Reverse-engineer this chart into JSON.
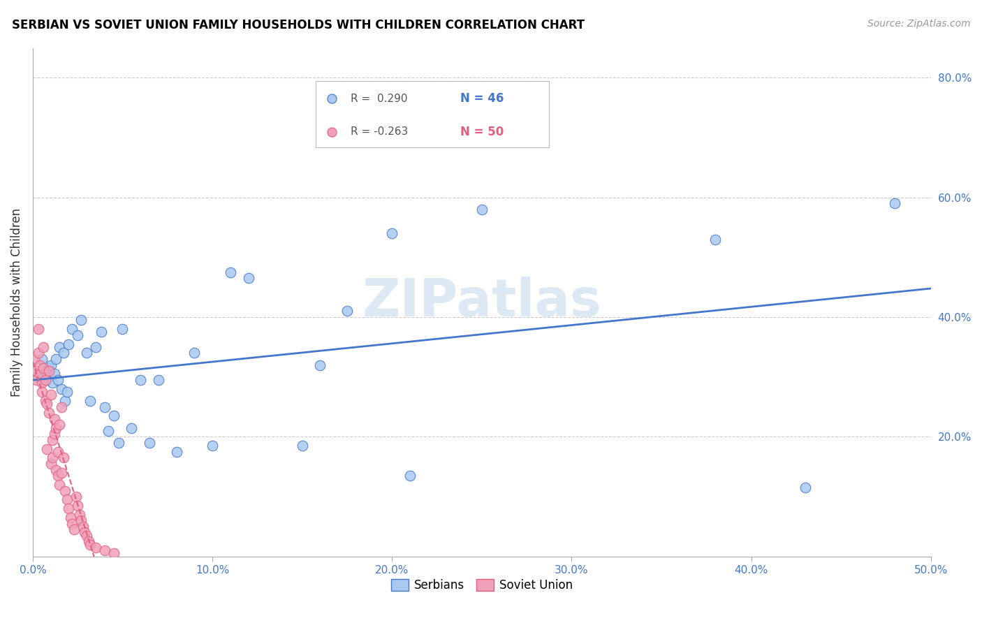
{
  "title": "SERBIAN VS SOVIET UNION FAMILY HOUSEHOLDS WITH CHILDREN CORRELATION CHART",
  "source": "Source: ZipAtlas.com",
  "ylabel": "Family Households with Children",
  "xlim": [
    0.0,
    0.5
  ],
  "ylim": [
    0.0,
    0.85
  ],
  "xticks": [
    0.0,
    0.1,
    0.2,
    0.3,
    0.4,
    0.5
  ],
  "yticks": [
    0.0,
    0.2,
    0.4,
    0.6,
    0.8
  ],
  "xtick_labels": [
    "0.0%",
    "10.0%",
    "20.0%",
    "30.0%",
    "40.0%",
    "50.0%"
  ],
  "ytick_labels": [
    "",
    "20.0%",
    "40.0%",
    "60.0%",
    "80.0%"
  ],
  "watermark": "ZIPatlas",
  "legend_serbian_r": "R =  0.290",
  "legend_serbian_n": "N = 46",
  "legend_soviet_r": "R = -0.263",
  "legend_soviet_n": "N = 50",
  "serbian_color": "#a8c8f0",
  "soviet_color": "#f0a0b8",
  "serbian_line_color": "#4477cc",
  "soviet_line_color": "#e06080",
  "serbian_x": [
    0.003,
    0.005,
    0.007,
    0.008,
    0.009,
    0.01,
    0.011,
    0.012,
    0.013,
    0.014,
    0.015,
    0.016,
    0.017,
    0.018,
    0.019,
    0.02,
    0.022,
    0.025,
    0.027,
    0.03,
    0.032,
    0.035,
    0.038,
    0.04,
    0.042,
    0.045,
    0.048,
    0.05,
    0.055,
    0.06,
    0.065,
    0.07,
    0.08,
    0.09,
    0.1,
    0.11,
    0.12,
    0.15,
    0.16,
    0.175,
    0.2,
    0.21,
    0.25,
    0.38,
    0.43,
    0.48
  ],
  "serbian_y": [
    0.3,
    0.33,
    0.31,
    0.295,
    0.315,
    0.32,
    0.29,
    0.305,
    0.33,
    0.295,
    0.35,
    0.28,
    0.34,
    0.26,
    0.275,
    0.355,
    0.38,
    0.37,
    0.395,
    0.34,
    0.26,
    0.35,
    0.375,
    0.25,
    0.21,
    0.235,
    0.19,
    0.38,
    0.215,
    0.295,
    0.19,
    0.295,
    0.175,
    0.34,
    0.185,
    0.475,
    0.465,
    0.185,
    0.32,
    0.41,
    0.54,
    0.135,
    0.58,
    0.53,
    0.115,
    0.59
  ],
  "soviet_x": [
    0.001,
    0.002,
    0.002,
    0.003,
    0.003,
    0.004,
    0.004,
    0.005,
    0.005,
    0.006,
    0.006,
    0.007,
    0.007,
    0.008,
    0.008,
    0.009,
    0.009,
    0.01,
    0.01,
    0.011,
    0.011,
    0.012,
    0.012,
    0.013,
    0.013,
    0.014,
    0.014,
    0.015,
    0.015,
    0.016,
    0.016,
    0.017,
    0.018,
    0.019,
    0.02,
    0.021,
    0.022,
    0.023,
    0.024,
    0.025,
    0.026,
    0.027,
    0.028,
    0.029,
    0.03,
    0.031,
    0.032,
    0.035,
    0.04,
    0.045
  ],
  "soviet_y": [
    0.33,
    0.31,
    0.295,
    0.34,
    0.38,
    0.305,
    0.32,
    0.29,
    0.275,
    0.315,
    0.35,
    0.295,
    0.26,
    0.255,
    0.18,
    0.31,
    0.24,
    0.155,
    0.27,
    0.195,
    0.165,
    0.23,
    0.205,
    0.145,
    0.215,
    0.175,
    0.135,
    0.12,
    0.22,
    0.25,
    0.14,
    0.165,
    0.11,
    0.095,
    0.08,
    0.065,
    0.055,
    0.045,
    0.1,
    0.085,
    0.07,
    0.06,
    0.05,
    0.04,
    0.035,
    0.025,
    0.02,
    0.015,
    0.01,
    0.005
  ]
}
